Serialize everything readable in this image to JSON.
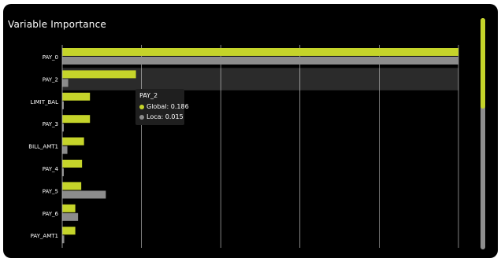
{
  "colors": {
    "global": "#c5d42a",
    "local": "#8c8c8c",
    "background": "#000000",
    "grid": "#d9d9d9",
    "highlight": "#2b2b2b"
  },
  "chart_data": {
    "type": "bar",
    "orientation": "horizontal",
    "title": "Variable Importance",
    "categories": [
      "PAY_0",
      "PAY_2",
      "LIMIT_BAL",
      "PAY_3",
      "BILL_AMT1",
      "PAY_4",
      "PAY_5",
      "PAY_6",
      "PAY_AMT1"
    ],
    "series": [
      {
        "name": "Global",
        "values": [
          1.0,
          0.186,
          0.07,
          0.07,
          0.055,
          0.05,
          0.048,
          0.033,
          0.033
        ]
      },
      {
        "name": "Local",
        "values": [
          1.0,
          0.015,
          0.0,
          0.0,
          0.013,
          0.0,
          0.11,
          0.04,
          0.005
        ]
      }
    ],
    "xlim": [
      0,
      1
    ],
    "grid": true,
    "highlighted_category": "PAY_2"
  },
  "tooltip": {
    "title": "PAY_2",
    "global": "Global: 0.186",
    "local": "Loca: 0.015"
  }
}
